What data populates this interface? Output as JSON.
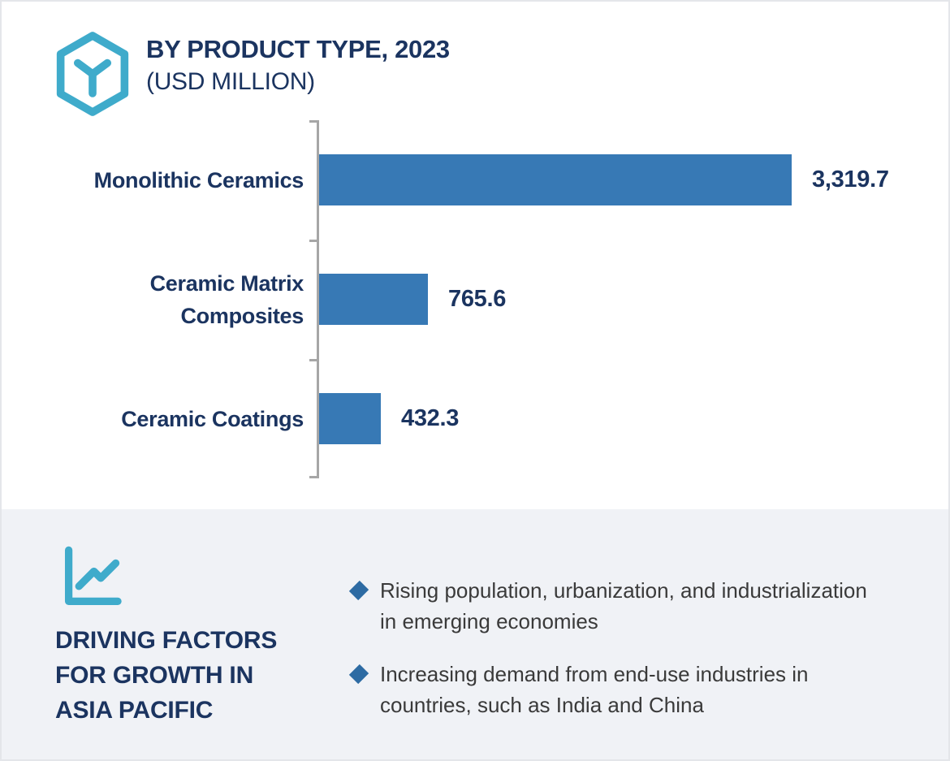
{
  "header": {
    "title": "BY PRODUCT TYPE, 2023",
    "subtitle": "(USD MILLION)"
  },
  "chart_data": {
    "type": "bar",
    "orientation": "horizontal",
    "title": "BY PRODUCT TYPE, 2023",
    "unit": "USD MILLION",
    "categories": [
      "Monolithic Ceramics",
      "Ceramic Matrix Composites",
      "Ceramic Coatings"
    ],
    "values": [
      3319.7,
      765.6,
      432.3
    ],
    "value_labels": [
      "3,319.7",
      "765.6",
      "432.3"
    ],
    "xlim": [
      0,
      3319.7
    ],
    "grid": false,
    "legend": false,
    "bar_color": "#3779b5",
    "axis_color": "#a6a6a6"
  },
  "driving_factors": {
    "heading": "DRIVING FACTORS FOR GROWTH IN ASIA PACIFIC",
    "bullets": [
      [
        "Rising population, urbanization, and industrialization",
        "in emerging economies"
      ],
      [
        "Increasing demand from end-use industries in",
        "countries, such as India and China"
      ]
    ]
  },
  "colors": {
    "navy": "#1b3460",
    "teal": "#3fabcb",
    "bar_blue": "#3779b5",
    "diamond_blue": "#2d6ba3",
    "section_bg": "#f0f2f6",
    "body_text": "#3a3a3a",
    "axis_gray": "#a6a6a6"
  },
  "icons": {
    "header": "hexagon-box-icon",
    "driving_factors": "line-chart-icon",
    "bullet": "diamond-bullet-icon"
  }
}
